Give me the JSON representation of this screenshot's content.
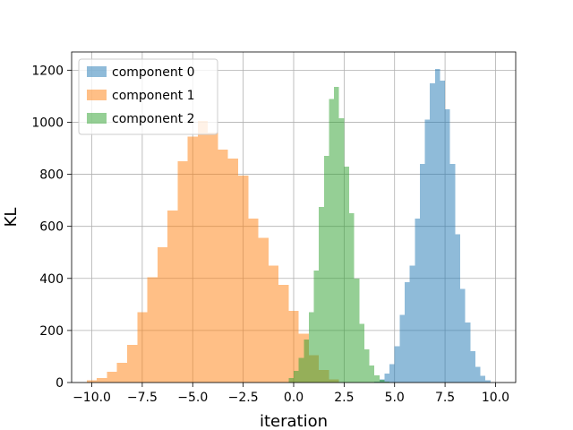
{
  "chart_data": {
    "type": "histogram",
    "title": "",
    "xlabel": "iteration",
    "ylabel": "KL",
    "xlim": [
      -10.999,
      11.0
    ],
    "ylim": [
      0,
      1270
    ],
    "xticks": [
      -10.0,
      -7.5,
      -5.0,
      -2.5,
      0.0,
      2.5,
      5.0,
      7.5,
      10.0
    ],
    "xtick_labels": [
      "−10.0",
      "−7.5",
      "−5.0",
      "−2.5",
      "0.0",
      "2.5",
      "5.0",
      "7.5",
      "10.0"
    ],
    "yticks": [
      0,
      200,
      400,
      600,
      800,
      1000,
      1200
    ],
    "ytick_labels": [
      "0",
      "200",
      "400",
      "600",
      "800",
      "1000",
      "1200"
    ],
    "grid": true,
    "legend_position": "upper-left",
    "alpha": 0.5,
    "series": [
      {
        "name": "component 0",
        "color": "#1f77b4",
        "bin_edges": [
          4.0,
          4.25,
          4.5,
          4.75,
          5.0,
          5.25,
          5.5,
          5.75,
          6.0,
          6.25,
          6.5,
          6.75,
          7.0,
          7.25,
          7.5,
          7.75,
          8.0,
          8.25,
          8.5,
          8.75,
          9.0,
          9.25,
          9.5,
          9.75
        ],
        "counts": [
          3,
          12,
          35,
          70,
          140,
          260,
          385,
          450,
          630,
          840,
          1010,
          1150,
          1205,
          1160,
          1050,
          840,
          570,
          360,
          230,
          120,
          60,
          25,
          8
        ]
      },
      {
        "name": "component 1",
        "color": "#ff7f0e",
        "bin_edges": [
          -10.25,
          -9.75,
          -9.25,
          -8.75,
          -8.25,
          -7.75,
          -7.25,
          -6.75,
          -6.25,
          -5.75,
          -5.25,
          -4.75,
          -4.25,
          -3.75,
          -3.25,
          -2.75,
          -2.25,
          -1.75,
          -1.25,
          -0.75,
          -0.25,
          0.25,
          0.75,
          1.25,
          1.75,
          2.25
        ],
        "counts": [
          8,
          18,
          42,
          75,
          145,
          270,
          405,
          520,
          660,
          850,
          945,
          1005,
          960,
          895,
          860,
          795,
          630,
          555,
          450,
          375,
          275,
          188,
          105,
          48,
          12
        ]
      },
      {
        "name": "component 2",
        "color": "#2ca02c",
        "bin_edges": [
          -0.25,
          0.0,
          0.25,
          0.5,
          0.75,
          1.0,
          1.25,
          1.5,
          1.75,
          2.0,
          2.25,
          2.5,
          2.75,
          3.0,
          3.25,
          3.5,
          3.75,
          4.0,
          4.25,
          4.5,
          4.75
        ],
        "counts": [
          18,
          45,
          95,
          165,
          270,
          430,
          675,
          870,
          1090,
          1135,
          1015,
          830,
          650,
          400,
          225,
          128,
          65,
          28,
          10,
          3
        ]
      }
    ]
  }
}
